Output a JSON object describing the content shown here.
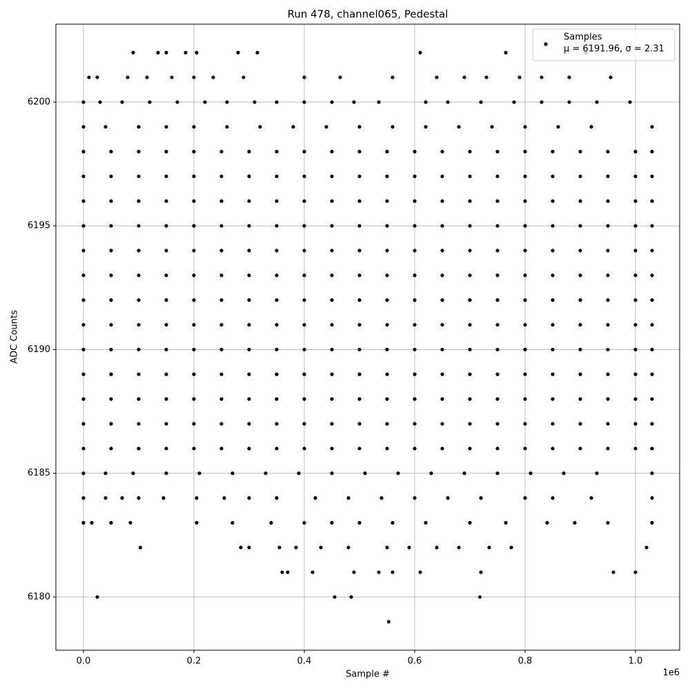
{
  "chart_data": {
    "type": "scatter",
    "title": "Run 478, channel065, Pedestal",
    "x_label": "Sample #",
    "y_label": "ADC Counts",
    "x_offset_label": "1e6",
    "annotation": "μ = 6191.96, σ = 2.31",
    "grid": true,
    "legend": "upper right",
    "xlim": [
      -50000,
      1080000
    ],
    "ylim": [
      6177.85,
      6203.15
    ],
    "xticks": [
      {
        "value": 0,
        "label": "0.0"
      },
      {
        "value": 200000,
        "label": "0.2"
      },
      {
        "value": 400000,
        "label": "0.4"
      },
      {
        "value": 600000,
        "label": "0.6"
      },
      {
        "value": 800000,
        "label": "0.8"
      },
      {
        "value": 1000000,
        "label": "1.0"
      }
    ],
    "yticks": [
      6180,
      6185,
      6190,
      6195,
      6200
    ],
    "series": [
      {
        "name": "Samples",
        "color": "#000000",
        "x": [
          0,
          50000,
          100000,
          150000,
          200000,
          250000,
          300000,
          350000,
          400000,
          450000,
          500000,
          550000,
          600000,
          650000,
          700000,
          750000,
          800000,
          850000,
          900000,
          950000,
          1000000,
          1030000,
          0,
          50000,
          100000,
          150000,
          200000,
          250000,
          300000,
          350000,
          400000,
          450000,
          500000,
          550000,
          600000,
          650000,
          700000,
          750000,
          800000,
          850000,
          900000,
          950000,
          1000000,
          1030000,
          0,
          50000,
          100000,
          150000,
          200000,
          250000,
          300000,
          350000,
          400000,
          450000,
          500000,
          550000,
          600000,
          650000,
          700000,
          750000,
          800000,
          850000,
          900000,
          950000,
          1000000,
          1030000,
          0,
          50000,
          100000,
          150000,
          200000,
          250000,
          300000,
          350000,
          400000,
          450000,
          500000,
          550000,
          600000,
          650000,
          700000,
          750000,
          800000,
          850000,
          900000,
          950000,
          1000000,
          1030000,
          0,
          50000,
          100000,
          150000,
          200000,
          250000,
          300000,
          350000,
          400000,
          450000,
          500000,
          550000,
          600000,
          650000,
          700000,
          750000,
          800000,
          850000,
          900000,
          950000,
          1000000,
          1030000,
          0,
          50000,
          100000,
          150000,
          200000,
          250000,
          300000,
          350000,
          400000,
          450000,
          500000,
          550000,
          600000,
          650000,
          700000,
          750000,
          800000,
          850000,
          900000,
          950000,
          1000000,
          1030000,
          0,
          50000,
          100000,
          150000,
          200000,
          250000,
          300000,
          350000,
          400000,
          450000,
          500000,
          550000,
          600000,
          650000,
          700000,
          750000,
          800000,
          850000,
          900000,
          950000,
          1000000,
          1030000,
          0,
          50000,
          100000,
          150000,
          200000,
          250000,
          300000,
          350000,
          400000,
          450000,
          500000,
          550000,
          600000,
          650000,
          700000,
          750000,
          800000,
          850000,
          900000,
          950000,
          1000000,
          1030000,
          0,
          50000,
          100000,
          150000,
          200000,
          250000,
          300000,
          350000,
          400000,
          450000,
          500000,
          550000,
          600000,
          650000,
          700000,
          750000,
          800000,
          850000,
          900000,
          950000,
          1000000,
          1030000,
          0,
          50000,
          100000,
          150000,
          200000,
          250000,
          300000,
          350000,
          400000,
          450000,
          500000,
          550000,
          600000,
          650000,
          700000,
          750000,
          800000,
          850000,
          900000,
          950000,
          1000000,
          1030000,
          0,
          50000,
          100000,
          150000,
          200000,
          250000,
          300000,
          350000,
          400000,
          450000,
          500000,
          550000,
          600000,
          650000,
          700000,
          750000,
          800000,
          850000,
          900000,
          950000,
          1000000,
          1030000,
          0,
          50000,
          100000,
          150000,
          200000,
          250000,
          300000,
          350000,
          400000,
          450000,
          500000,
          550000,
          600000,
          650000,
          700000,
          750000,
          800000,
          850000,
          900000,
          950000,
          1000000,
          1030000,
          0,
          50000,
          100000,
          150000,
          200000,
          250000,
          300000,
          350000,
          400000,
          450000,
          500000,
          550000,
          600000,
          650000,
          700000,
          750000,
          800000,
          850000,
          900000,
          950000,
          1000000,
          1030000,
          90000,
          135000,
          150000,
          185000,
          205000,
          280000,
          315000,
          610000,
          765000,
          910000,
          10000,
          25000,
          80000,
          115000,
          160000,
          200000,
          235000,
          290000,
          400000,
          465000,
          560000,
          640000,
          690000,
          730000,
          790000,
          830000,
          880000,
          955000,
          0,
          30000,
          70000,
          120000,
          170000,
          220000,
          260000,
          310000,
          350000,
          400000,
          450000,
          490000,
          535000,
          620000,
          660000,
          720000,
          780000,
          830000,
          880000,
          930000,
          990000,
          0,
          40000,
          100000,
          150000,
          200000,
          260000,
          320000,
          380000,
          440000,
          500000,
          560000,
          620000,
          680000,
          740000,
          800000,
          860000,
          920000,
          1030000,
          0,
          40000,
          90000,
          150000,
          210000,
          270000,
          330000,
          390000,
          450000,
          510000,
          570000,
          630000,
          690000,
          750000,
          810000,
          870000,
          930000,
          1030000,
          0,
          40000,
          70000,
          100000,
          145000,
          205000,
          255000,
          300000,
          350000,
          420000,
          480000,
          540000,
          600000,
          660000,
          720000,
          800000,
          850000,
          920000,
          1030000,
          0,
          15000,
          50000,
          85000,
          205000,
          270000,
          340000,
          400000,
          450000,
          500000,
          560000,
          620000,
          700000,
          765000,
          840000,
          890000,
          950000,
          1030000,
          103000,
          285000,
          300000,
          355000,
          385000,
          430000,
          480000,
          550000,
          590000,
          640000,
          680000,
          735000,
          775000,
          1020000,
          360000,
          370000,
          415000,
          490000,
          535000,
          560000,
          610000,
          720000,
          960000,
          1000000,
          25000,
          455000,
          485000,
          718000,
          553000
        ],
        "y": [
          6186,
          6186,
          6186,
          6186,
          6186,
          6186,
          6186,
          6186,
          6186,
          6186,
          6186,
          6186,
          6186,
          6186,
          6186,
          6186,
          6186,
          6186,
          6186,
          6186,
          6186,
          6186,
          6187,
          6187,
          6187,
          6187,
          6187,
          6187,
          6187,
          6187,
          6187,
          6187,
          6187,
          6187,
          6187,
          6187,
          6187,
          6187,
          6187,
          6187,
          6187,
          6187,
          6187,
          6187,
          6188,
          6188,
          6188,
          6188,
          6188,
          6188,
          6188,
          6188,
          6188,
          6188,
          6188,
          6188,
          6188,
          6188,
          6188,
          6188,
          6188,
          6188,
          6188,
          6188,
          6188,
          6188,
          6189,
          6189,
          6189,
          6189,
          6189,
          6189,
          6189,
          6189,
          6189,
          6189,
          6189,
          6189,
          6189,
          6189,
          6189,
          6189,
          6189,
          6189,
          6189,
          6189,
          6189,
          6189,
          6190,
          6190,
          6190,
          6190,
          6190,
          6190,
          6190,
          6190,
          6190,
          6190,
          6190,
          6190,
          6190,
          6190,
          6190,
          6190,
          6190,
          6190,
          6190,
          6190,
          6190,
          6190,
          6191,
          6191,
          6191,
          6191,
          6191,
          6191,
          6191,
          6191,
          6191,
          6191,
          6191,
          6191,
          6191,
          6191,
          6191,
          6191,
          6191,
          6191,
          6191,
          6191,
          6191,
          6191,
          6192,
          6192,
          6192,
          6192,
          6192,
          6192,
          6192,
          6192,
          6192,
          6192,
          6192,
          6192,
          6192,
          6192,
          6192,
          6192,
          6192,
          6192,
          6192,
          6192,
          6192,
          6192,
          6193,
          6193,
          6193,
          6193,
          6193,
          6193,
          6193,
          6193,
          6193,
          6193,
          6193,
          6193,
          6193,
          6193,
          6193,
          6193,
          6193,
          6193,
          6193,
          6193,
          6193,
          6193,
          6194,
          6194,
          6194,
          6194,
          6194,
          6194,
          6194,
          6194,
          6194,
          6194,
          6194,
          6194,
          6194,
          6194,
          6194,
          6194,
          6194,
          6194,
          6194,
          6194,
          6194,
          6194,
          6195,
          6195,
          6195,
          6195,
          6195,
          6195,
          6195,
          6195,
          6195,
          6195,
          6195,
          6195,
          6195,
          6195,
          6195,
          6195,
          6195,
          6195,
          6195,
          6195,
          6195,
          6195,
          6196,
          6196,
          6196,
          6196,
          6196,
          6196,
          6196,
          6196,
          6196,
          6196,
          6196,
          6196,
          6196,
          6196,
          6196,
          6196,
          6196,
          6196,
          6196,
          6196,
          6196,
          6196,
          6197,
          6197,
          6197,
          6197,
          6197,
          6197,
          6197,
          6197,
          6197,
          6197,
          6197,
          6197,
          6197,
          6197,
          6197,
          6197,
          6197,
          6197,
          6197,
          6197,
          6197,
          6197,
          6198,
          6198,
          6198,
          6198,
          6198,
          6198,
          6198,
          6198,
          6198,
          6198,
          6198,
          6198,
          6198,
          6198,
          6198,
          6198,
          6198,
          6198,
          6198,
          6198,
          6198,
          6198,
          6202,
          6202,
          6202,
          6202,
          6202,
          6202,
          6202,
          6202,
          6202,
          6202,
          6201,
          6201,
          6201,
          6201,
          6201,
          6201,
          6201,
          6201,
          6201,
          6201,
          6201,
          6201,
          6201,
          6201,
          6201,
          6201,
          6201,
          6201,
          6200,
          6200,
          6200,
          6200,
          6200,
          6200,
          6200,
          6200,
          6200,
          6200,
          6200,
          6200,
          6200,
          6200,
          6200,
          6200,
          6200,
          6200,
          6200,
          6200,
          6200,
          6199,
          6199,
          6199,
          6199,
          6199,
          6199,
          6199,
          6199,
          6199,
          6199,
          6199,
          6199,
          6199,
          6199,
          6199,
          6199,
          6199,
          6199,
          6185,
          6185,
          6185,
          6185,
          6185,
          6185,
          6185,
          6185,
          6185,
          6185,
          6185,
          6185,
          6185,
          6185,
          6185,
          6185,
          6185,
          6185,
          6184,
          6184,
          6184,
          6184,
          6184,
          6184,
          6184,
          6184,
          6184,
          6184,
          6184,
          6184,
          6184,
          6184,
          6184,
          6184,
          6184,
          6184,
          6184,
          6183,
          6183,
          6183,
          6183,
          6183,
          6183,
          6183,
          6183,
          6183,
          6183,
          6183,
          6183,
          6183,
          6183,
          6183,
          6183,
          6183,
          6183,
          6182,
          6182,
          6182,
          6182,
          6182,
          6182,
          6182,
          6182,
          6182,
          6182,
          6182,
          6182,
          6182,
          6182,
          6181,
          6181,
          6181,
          6181,
          6181,
          6181,
          6181,
          6181,
          6181,
          6181,
          6180,
          6180,
          6180,
          6180,
          6179
        ]
      }
    ]
  }
}
